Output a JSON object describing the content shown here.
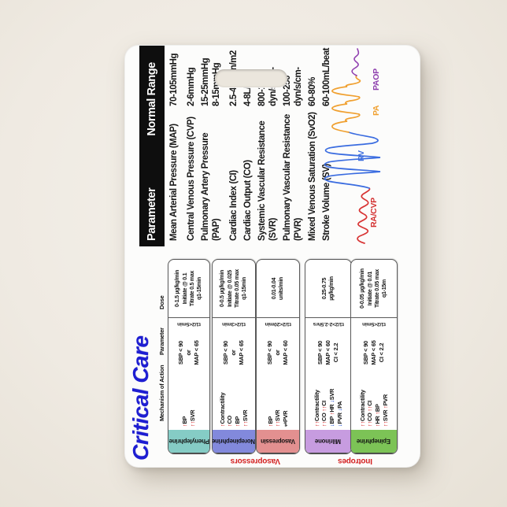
{
  "badge": {
    "title": "Critical Care",
    "drug_table": {
      "headers": {
        "mechanism": "Mechanism of Action",
        "parameter": "Parameter",
        "dose": "Dose"
      },
      "groups": [
        {
          "label": "Vasopressors"
        },
        {
          "label": "Inotropes"
        }
      ],
      "drugs": [
        {
          "name": "Phenylephrine",
          "color": "#85ccc5",
          "group": "Vasopressors",
          "mechanism": [
            "↑BP",
            "↑↑SVR"
          ],
          "parameter": [
            "SBP < 90",
            "or",
            "MAP < 65"
          ],
          "half_life": "t1/2<5min",
          "dose": [
            "0-1.5 µg/kg/min",
            "Initiate @ 0.1",
            "Titrate 0.5 max",
            "q1-15min"
          ]
        },
        {
          "name": "Norepinephrine",
          "color": "#8289dc",
          "group": "Vasopressors",
          "mechanism": [
            "↑Contractility",
            "↑CO",
            "↑BP",
            "↑↑SVR"
          ],
          "parameter": [
            "SBP < 90",
            "or",
            "MAP < 65"
          ],
          "half_life": "t1/2<3min",
          "dose": [
            "0-0.5 µg/kg/min",
            "Initiate @ 0.025",
            "Titrate 0.05 max",
            "q1-15min"
          ]
        },
        {
          "name": "Vasopressin",
          "color": "#e39090",
          "group": "Vasopressors",
          "mechanism": [
            "↑BP",
            "↑↑SVR",
            "⇌PVR"
          ],
          "parameter": [
            "SBP < 90",
            "or",
            "MAP < 60"
          ],
          "half_life": "t1/2<20min",
          "dose": [
            "0.01-0.04",
            "units/min"
          ]
        },
        {
          "name": "Milrinone",
          "color": "#c79ce0",
          "group": "Inotropes",
          "mechanism": [
            "↑↑Contractility",
            "↑↑CO ↑↑CI",
            "↓BP ↑HR ↓SVR",
            "↓PVR ↓PA"
          ],
          "parameter": [
            "SBP < 90",
            "MAP < 60",
            "CI < 2.2"
          ],
          "half_life": "t1/2>2-2.5hrs",
          "dose": [
            "0.25-0.75",
            "µg/kg/min"
          ]
        },
        {
          "name": "Epinephrine",
          "color": "#7cc356",
          "group": "Inotropes",
          "mechanism": [
            "↑↑Contractility",
            "↑↑CO ↑↑CI",
            "↑HR ↑BP",
            "↑↑SVR ↑PVR"
          ],
          "parameter": [
            "SBP < 90",
            "MAP < 65",
            "CI < 2.2"
          ],
          "half_life": "t1/2<5min",
          "dose": [
            "0-0.05 µg/kg/min",
            "Initiate @ 0.01",
            "Titrate 0.05 max",
            "q1-15m"
          ]
        }
      ]
    },
    "hemodynamics": {
      "headers": {
        "parameter": "Parameter",
        "normal_range": "Normal Range"
      },
      "rows": [
        {
          "name": [
            "Mean Arterial Pressure (MAP)"
          ],
          "range": [
            "70-105mmHg"
          ]
        },
        {
          "name": [
            "Central Venous Pressure (CVP)"
          ],
          "range": [
            "2-6mmHg"
          ]
        },
        {
          "name": [
            "Pulmonary Artery Pressure",
            "(PAP)"
          ],
          "range": [
            "15-25mmHg",
            "8-15mmHg"
          ]
        },
        {
          "name": [
            "Cardiac Index (CI)"
          ],
          "range": [
            "2.5-4L/min/m2"
          ]
        },
        {
          "name": [
            "Cardiac Output (CO)"
          ],
          "range": [
            "4-8L/min"
          ]
        },
        {
          "name": [
            "Systemic Vascular Resistance",
            "(SVR)"
          ],
          "range": [
            "800-1200",
            "dyn/s/cm-"
          ]
        },
        {
          "name": [
            "Pulmonary Vascular Resistance",
            "(PVR)"
          ],
          "range": [
            "100-250",
            "dyn/s/cm-"
          ]
        },
        {
          "name": [
            "Mixed Venous Saturation (SvO2)"
          ],
          "range": [
            "60-80%"
          ]
        },
        {
          "name": [
            "Stroke Volume (SV)"
          ],
          "range": [
            "60-100mL/beat"
          ]
        }
      ]
    },
    "waveform": {
      "labels": [
        {
          "text": "RA/CVP",
          "color": "#d32f2f"
        },
        {
          "text": "RV",
          "color": "#3f6fdd"
        },
        {
          "text": "PA",
          "color": "#f0a030"
        },
        {
          "text": "PAOP",
          "color": "#8e3fae"
        }
      ],
      "trace_colors": {
        "ra_cvp": "#d83434",
        "rv": "#3a6ce0",
        "pa": "#f0a030",
        "paop": "#9040b0"
      }
    },
    "colors": {
      "title_blue": "#1e1ed2",
      "arrow_up_red": "#d32020",
      "arrow_down_blue": "#2050d8",
      "group_label_red": "#d32020",
      "header_bar_black": "#0e0e0e"
    }
  }
}
